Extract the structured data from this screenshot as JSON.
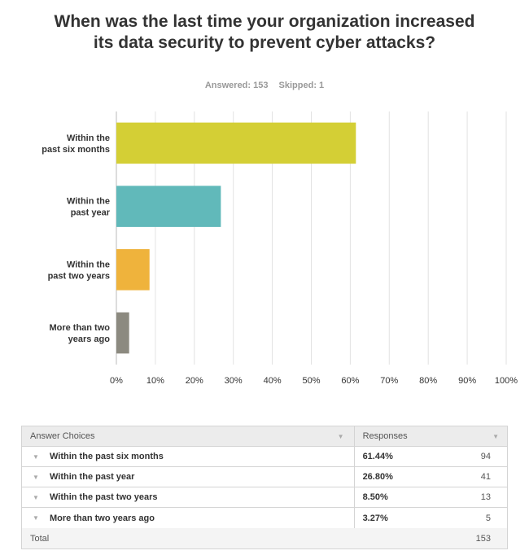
{
  "title": "When was the last time your organization increased its data security to prevent cyber attacks?",
  "stats": {
    "answered": "Answered: 153",
    "skipped": "Skipped: 1"
  },
  "chart_data": {
    "type": "bar",
    "orientation": "horizontal",
    "categories": [
      [
        "Within the",
        "past six months"
      ],
      [
        "Within the",
        "past year"
      ],
      [
        "Within the",
        "past two years"
      ],
      [
        "More than two",
        "years ago"
      ]
    ],
    "values": [
      61.44,
      26.8,
      8.5,
      3.27
    ],
    "colors": [
      "#d4cf35",
      "#61b9ba",
      "#efb33c",
      "#8c8a80"
    ],
    "xlim": [
      0,
      100
    ],
    "xticks": [
      "0%",
      "10%",
      "20%",
      "30%",
      "40%",
      "50%",
      "60%",
      "70%",
      "80%",
      "90%",
      "100%"
    ],
    "grid": true
  },
  "table": {
    "headers": {
      "choices": "Answer Choices",
      "responses": "Responses"
    },
    "caret": "▼",
    "rows": [
      {
        "label": "Within the past six months",
        "pct": "61.44%",
        "count": "94"
      },
      {
        "label": "Within the past year",
        "pct": "26.80%",
        "count": "41"
      },
      {
        "label": "Within the past two years",
        "pct": "8.50%",
        "count": "13"
      },
      {
        "label": "More than two years ago",
        "pct": "3.27%",
        "count": "5"
      }
    ],
    "total": {
      "label": "Total",
      "count": "153"
    }
  }
}
